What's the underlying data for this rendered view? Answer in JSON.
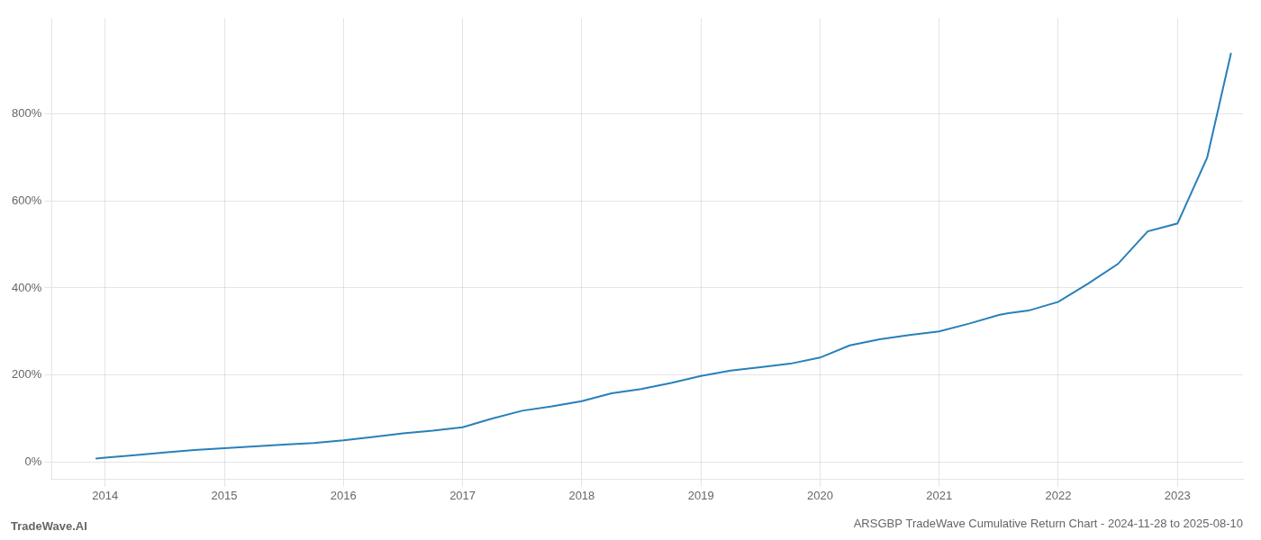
{
  "chart_data": {
    "type": "line",
    "title": "ARSGBP TradeWave Cumulative Return Chart - 2024-11-28 to 2025-08-10",
    "annotations": [
      "TradeWave.AI"
    ],
    "x": [
      2013.92,
      2014.0,
      2014.25,
      2014.5,
      2014.75,
      2015.0,
      2015.25,
      2015.5,
      2015.75,
      2016.0,
      2016.25,
      2016.5,
      2016.75,
      2017.0,
      2017.25,
      2017.5,
      2017.75,
      2018.0,
      2018.25,
      2018.5,
      2018.75,
      2019.0,
      2019.25,
      2019.5,
      2019.75,
      2020.0,
      2020.25,
      2020.5,
      2020.75,
      2021.0,
      2021.25,
      2021.5,
      2021.58,
      2021.75,
      2022.0,
      2022.25,
      2022.5,
      2022.75,
      2023.0,
      2023.25,
      2023.45
    ],
    "values": [
      8,
      10,
      16,
      22,
      28,
      32,
      36,
      40,
      44,
      50,
      58,
      66,
      72,
      80,
      100,
      118,
      128,
      140,
      158,
      168,
      182,
      198,
      210,
      218,
      226,
      240,
      268,
      282,
      292,
      300,
      318,
      338,
      342,
      348,
      368,
      410,
      455,
      530,
      548,
      700,
      940
    ],
    "color": "#2980b9",
    "xlim": [
      2013.55,
      2023.55
    ],
    "xticks": [
      2014,
      2015,
      2016,
      2017,
      2018,
      2019,
      2020,
      2021,
      2022,
      2023
    ],
    "ylim": [
      -40,
      1020
    ],
    "yticks": [
      {
        "value": 0,
        "label": "0%"
      },
      {
        "value": 200,
        "label": "200%"
      },
      {
        "value": 400,
        "label": "400%"
      },
      {
        "value": 600,
        "label": "600%"
      },
      {
        "value": 800,
        "label": "800%"
      }
    ],
    "grid": true
  }
}
